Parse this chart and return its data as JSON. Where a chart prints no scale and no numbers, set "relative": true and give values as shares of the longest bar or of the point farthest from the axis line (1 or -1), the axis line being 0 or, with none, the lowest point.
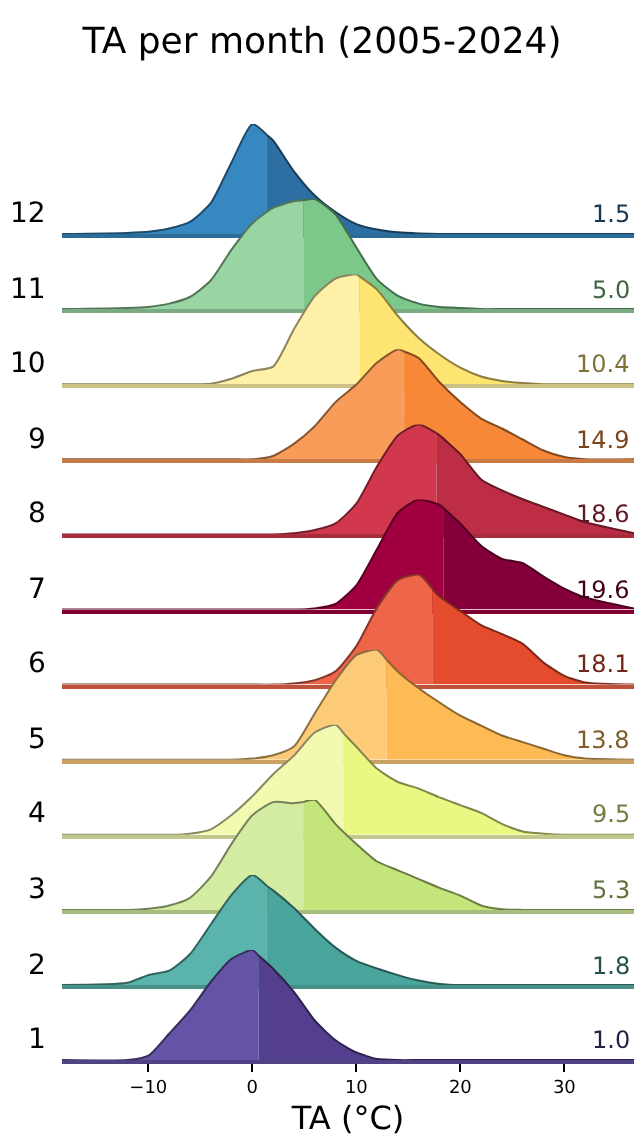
{
  "chart_data": [
    {
      "type": "area",
      "title": "TA per month (2005-2024)",
      "ylabel": "12",
      "relative": true,
      "xlim": [
        -18.3,
        36.7
      ],
      "tick_labels": false,
      "annotations": [
        "1.5"
      ],
      "series": [
        {
          "color": "#3787c0",
          "x": [
            -18.3,
            -12,
            -10,
            -8,
            -6,
            -4,
            -2,
            0,
            1.4
          ],
          "values": [
            0,
            0.01,
            0.02,
            0.05,
            0.11,
            0.28,
            0.65,
            1,
            0.9
          ]
        },
        {
          "color": "#2d6fa3",
          "x": [
            1.4,
            2,
            4,
            6,
            8,
            10,
            12,
            14,
            16,
            18,
            20,
            22,
            24,
            26,
            28,
            30,
            32,
            36.7
          ],
          "values": [
            0.9,
            0.85,
            0.57,
            0.35,
            0.2,
            0.09,
            0.04,
            0.015,
            0.005,
            0,
            0,
            0,
            0,
            0,
            0,
            0,
            0,
            0
          ]
        }
      ]
    },
    {
      "type": "area",
      "ylabel": "11",
      "relative": true,
      "xlim": [
        -18.3,
        36.7
      ],
      "tick_labels": false,
      "annotations": [
        "5.0"
      ],
      "series": [
        {
          "color": "#98d5a2",
          "x": [
            -18.3,
            -12,
            -10,
            -8,
            -6,
            -4,
            -2,
            0,
            2,
            4,
            4.9
          ],
          "values": [
            0,
            0.01,
            0.02,
            0.05,
            0.11,
            0.26,
            0.54,
            0.78,
            0.92,
            0.98,
            0.99
          ]
        },
        {
          "color": "#7cc88a",
          "x": [
            4.9,
            6,
            8,
            10,
            12,
            14,
            16,
            18,
            20,
            22,
            24,
            26,
            28,
            30,
            32,
            36.7
          ],
          "values": [
            0.99,
            1,
            0.86,
            0.56,
            0.27,
            0.12,
            0.05,
            0.02,
            0.01,
            0,
            0,
            0,
            0,
            0,
            0,
            0
          ]
        }
      ]
    },
    {
      "type": "area",
      "ylabel": "10",
      "relative": true,
      "xlim": [
        -18.3,
        36.7
      ],
      "tick_labels": false,
      "annotations": [
        "10.4"
      ],
      "series": [
        {
          "color": "#fff0a8",
          "x": [
            -18.3,
            -12,
            -10,
            -8,
            -6,
            -4,
            -2,
            0,
            2,
            4,
            6,
            8,
            10,
            10.3
          ],
          "values": [
            0,
            0,
            0,
            0,
            0,
            0.005,
            0.05,
            0.12,
            0.16,
            0.5,
            0.8,
            0.96,
            1,
            0.98
          ]
        },
        {
          "color": "#fee470",
          "x": [
            10.3,
            12,
            14,
            16,
            18,
            20,
            22,
            24,
            26,
            28,
            30,
            32,
            36.7
          ],
          "values": [
            0.98,
            0.86,
            0.62,
            0.42,
            0.27,
            0.15,
            0.07,
            0.03,
            0.01,
            0,
            0,
            0,
            0
          ]
        }
      ]
    },
    {
      "type": "area",
      "ylabel": "9",
      "relative": true,
      "xlim": [
        -18.3,
        36.7
      ],
      "tick_labels": false,
      "annotations": [
        "14.9"
      ],
      "series": [
        {
          "color": "#f99c5a",
          "x": [
            -18.3,
            -12,
            -10,
            -8,
            -6,
            -4,
            -2,
            0,
            2,
            4,
            6,
            8,
            10,
            12,
            14,
            14.6
          ],
          "values": [
            0,
            0,
            0,
            0,
            0,
            0,
            0,
            0,
            0.03,
            0.14,
            0.3,
            0.52,
            0.68,
            0.88,
            1,
            0.98
          ]
        },
        {
          "color": "#f68838",
          "x": [
            14.6,
            16,
            18,
            20,
            22,
            24,
            26,
            28,
            30,
            32,
            36.7
          ],
          "values": [
            0.98,
            0.92,
            0.7,
            0.52,
            0.37,
            0.28,
            0.18,
            0.08,
            0.02,
            0,
            0
          ]
        }
      ]
    },
    {
      "type": "area",
      "ylabel": "8",
      "relative": true,
      "xlim": [
        -18.3,
        36.7
      ],
      "tick_labels": false,
      "annotations": [
        "18.6"
      ],
      "series": [
        {
          "color": "#d1384e",
          "x": [
            -18.3,
            -12,
            -10,
            -8,
            -6,
            -4,
            -2,
            0,
            2,
            4,
            6,
            8,
            10,
            12,
            14,
            16,
            17.7
          ],
          "values": [
            0,
            0,
            0,
            0,
            0,
            0,
            0,
            0,
            0,
            0.01,
            0.04,
            0.1,
            0.28,
            0.62,
            0.9,
            1,
            0.92
          ]
        },
        {
          "color": "#bd2d45",
          "x": [
            17.7,
            18,
            20,
            22,
            24,
            26,
            28,
            30,
            32,
            36.7
          ],
          "values": [
            0.92,
            0.9,
            0.73,
            0.5,
            0.4,
            0.32,
            0.25,
            0.18,
            0.11,
            0.01
          ]
        }
      ]
    },
    {
      "type": "area",
      "ylabel": "7",
      "relative": true,
      "xlim": [
        -18.3,
        36.7
      ],
      "tick_labels": false,
      "annotations": [
        "19.6"
      ],
      "series": [
        {
          "color": "#a0003f",
          "x": [
            -18.3,
            -12,
            -10,
            -8,
            -6,
            -4,
            -2,
            0,
            2,
            4,
            6,
            8,
            10,
            12,
            14,
            16,
            18,
            18.4
          ],
          "values": [
            0,
            0,
            0,
            0,
            0,
            0,
            0,
            0,
            0,
            0,
            0.01,
            0.05,
            0.22,
            0.55,
            0.88,
            1,
            0.95,
            0.92
          ]
        },
        {
          "color": "#85003a",
          "x": [
            18.4,
            20,
            22,
            24,
            26,
            28,
            30,
            32,
            36.7
          ],
          "values": [
            0.92,
            0.78,
            0.58,
            0.46,
            0.42,
            0.3,
            0.19,
            0.11,
            0.01
          ]
        }
      ]
    },
    {
      "type": "area",
      "ylabel": "6",
      "relative": true,
      "xlim": [
        -18.3,
        36.7
      ],
      "tick_labels": false,
      "annotations": [
        "18.1"
      ],
      "series": [
        {
          "color": "#ef6549",
          "x": [
            -18.3,
            -12,
            -10,
            -8,
            -6,
            -4,
            -2,
            0,
            2,
            4,
            6,
            8,
            10,
            12,
            14,
            16,
            17.3
          ],
          "values": [
            0,
            0,
            0,
            0,
            0,
            0,
            0,
            0,
            0,
            0.01,
            0.04,
            0.12,
            0.35,
            0.7,
            0.95,
            1,
            0.87
          ]
        },
        {
          "color": "#e54c2e",
          "x": [
            17.3,
            18,
            20,
            22,
            24,
            26,
            28,
            30,
            32,
            36.7
          ],
          "values": [
            0.87,
            0.8,
            0.67,
            0.54,
            0.46,
            0.37,
            0.2,
            0.08,
            0.02,
            0
          ]
        }
      ]
    },
    {
      "type": "area",
      "ylabel": "5",
      "relative": true,
      "xlim": [
        -18.3,
        36.7
      ],
      "tick_labels": false,
      "annotations": [
        "13.8"
      ],
      "series": [
        {
          "color": "#fdca78",
          "x": [
            -18.3,
            -12,
            -10,
            -8,
            -6,
            -4,
            -2,
            0,
            2,
            4,
            6,
            8,
            10,
            12,
            12.9
          ],
          "values": [
            0,
            0,
            0,
            0,
            0,
            0,
            0,
            0.01,
            0.04,
            0.12,
            0.42,
            0.72,
            0.95,
            1,
            0.91
          ]
        },
        {
          "color": "#fdba55",
          "x": [
            12.9,
            14,
            16,
            18,
            20,
            22,
            24,
            26,
            28,
            30,
            32,
            36.7
          ],
          "values": [
            0.91,
            0.8,
            0.65,
            0.52,
            0.4,
            0.31,
            0.22,
            0.16,
            0.1,
            0.04,
            0.01,
            0
          ]
        }
      ]
    },
    {
      "type": "area",
      "ylabel": "4",
      "relative": true,
      "xlim": [
        -18.3,
        36.7
      ],
      "tick_labels": false,
      "annotations": [
        "9.5"
      ],
      "series": [
        {
          "color": "#f3f9b1",
          "x": [
            -18.3,
            -12,
            -10,
            -8,
            -6,
            -4,
            -2,
            0,
            2,
            4,
            6,
            8,
            8.8
          ],
          "values": [
            0,
            0,
            0,
            0,
            0.01,
            0.05,
            0.18,
            0.35,
            0.55,
            0.72,
            0.93,
            1,
            0.92
          ]
        },
        {
          "color": "#eaf783",
          "x": [
            8.8,
            10,
            12,
            14,
            16,
            18,
            20,
            22,
            24,
            26,
            28,
            30,
            32,
            36.7
          ],
          "values": [
            0.92,
            0.8,
            0.6,
            0.48,
            0.42,
            0.34,
            0.27,
            0.2,
            0.1,
            0.03,
            0.01,
            0,
            0,
            0
          ]
        }
      ]
    },
    {
      "type": "area",
      "ylabel": "3",
      "relative": true,
      "xlim": [
        -18.3,
        36.7
      ],
      "tick_labels": false,
      "annotations": [
        "5.3"
      ],
      "series": [
        {
          "color": "#d3eca1",
          "x": [
            -18.3,
            -12,
            -10,
            -8,
            -6,
            -4,
            -2,
            0,
            2,
            4,
            4.9
          ],
          "values": [
            0,
            0,
            0.01,
            0.04,
            0.11,
            0.3,
            0.6,
            0.86,
            0.98,
            0.97,
            0.98
          ]
        },
        {
          "color": "#c3e57a",
          "x": [
            4.9,
            6,
            8,
            10,
            12,
            14,
            16,
            18,
            20,
            22,
            24,
            26,
            28,
            30,
            32,
            36.7
          ],
          "values": [
            0.98,
            1,
            0.78,
            0.6,
            0.44,
            0.36,
            0.28,
            0.2,
            0.13,
            0.04,
            0.005,
            0,
            0,
            0,
            0,
            0
          ]
        }
      ]
    },
    {
      "type": "area",
      "ylabel": "2",
      "relative": true,
      "xlim": [
        -18.3,
        36.7
      ],
      "tick_labels": false,
      "annotations": [
        "1.8"
      ],
      "series": [
        {
          "color": "#5ab4ac",
          "x": [
            -18.3,
            -12,
            -10,
            -8,
            -6,
            -4,
            -2,
            0,
            1.4
          ],
          "values": [
            0,
            0.02,
            0.09,
            0.13,
            0.28,
            0.55,
            0.82,
            1,
            0.9
          ]
        },
        {
          "color": "#4aa59c",
          "x": [
            1.4,
            2,
            4,
            6,
            8,
            10,
            12,
            14,
            16,
            18,
            20,
            22,
            24,
            26,
            28,
            30,
            32,
            36.7
          ],
          "values": [
            0.9,
            0.86,
            0.7,
            0.51,
            0.34,
            0.22,
            0.15,
            0.09,
            0.04,
            0.01,
            0,
            0,
            0,
            0,
            0,
            0,
            0,
            0
          ]
        }
      ]
    },
    {
      "type": "area",
      "ylabel": "1",
      "xlabel": "TA (°C)",
      "relative": true,
      "xlim": [
        -18.3,
        36.7
      ],
      "xticks": [
        -10,
        0,
        10,
        20,
        30
      ],
      "tick_labels": "x",
      "annotations": [
        "1.0"
      ],
      "series": [
        {
          "color": "#6553a6",
          "x": [
            -18.3,
            -12,
            -10,
            -8,
            -6,
            -4,
            -2,
            0,
            0.6
          ],
          "values": [
            0,
            0,
            0.04,
            0.24,
            0.45,
            0.71,
            0.92,
            1,
            0.95
          ]
        },
        {
          "color": "#533f8e",
          "x": [
            0.6,
            2,
            4,
            6,
            8,
            10,
            12,
            14,
            16,
            18,
            20,
            22,
            24,
            26,
            28,
            30,
            32,
            36.7
          ],
          "values": [
            0.95,
            0.83,
            0.62,
            0.36,
            0.18,
            0.07,
            0.01,
            0,
            0,
            0,
            0,
            0,
            0,
            0,
            0,
            0,
            0,
            0
          ]
        }
      ]
    }
  ]
}
